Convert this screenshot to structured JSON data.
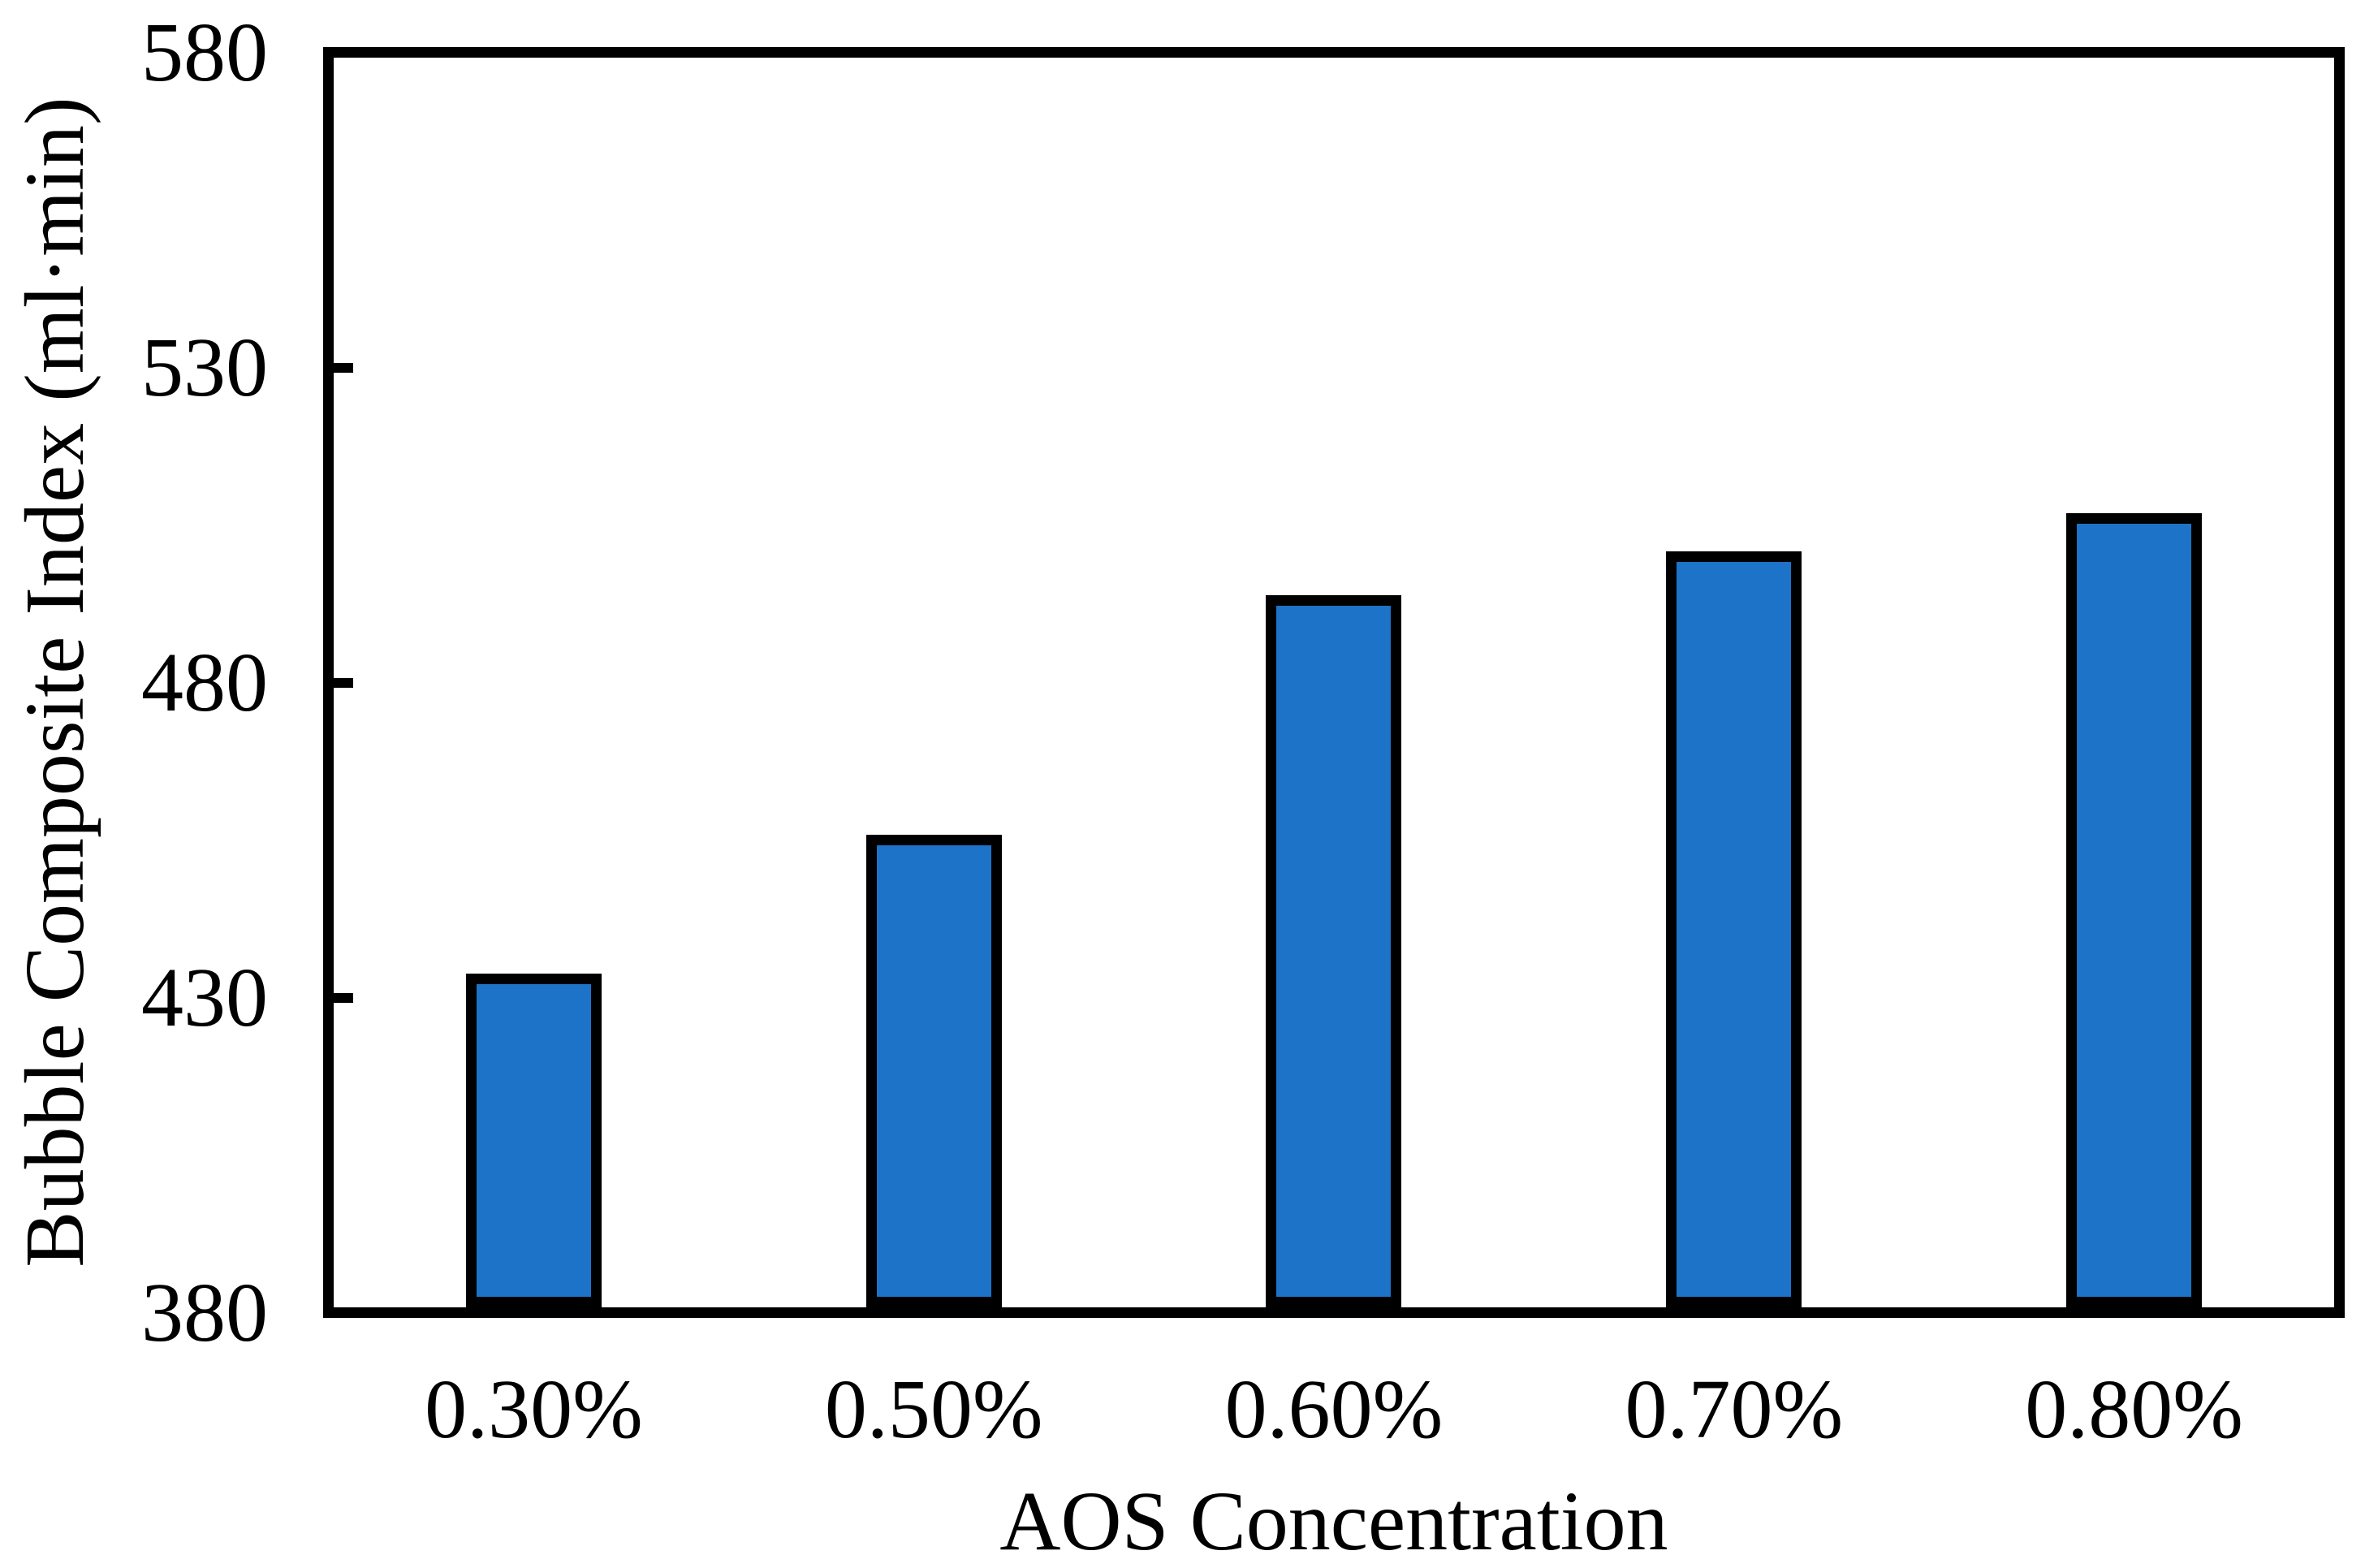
{
  "figure": {
    "background": "#FFFFFF",
    "axis_color": "#000000",
    "text_color": "#000000"
  },
  "chart_data": {
    "type": "bar",
    "title": "",
    "categories": [
      "0.30%",
      "0.50%",
      "0.60%",
      "0.70%",
      "0.80%"
    ],
    "values": [
      433,
      455,
      493,
      500,
      506
    ],
    "xlabel": "AOS Concentration",
    "ylabel": "Bubble Composite Index (ml·min)",
    "ylim": [
      380,
      580
    ],
    "yticks": [
      380,
      430,
      480,
      530,
      580
    ],
    "ytick_interval": 50,
    "grid": false,
    "legend_position": "none",
    "bar_fill": "#1C73C8",
    "bar_border": "#000000"
  }
}
